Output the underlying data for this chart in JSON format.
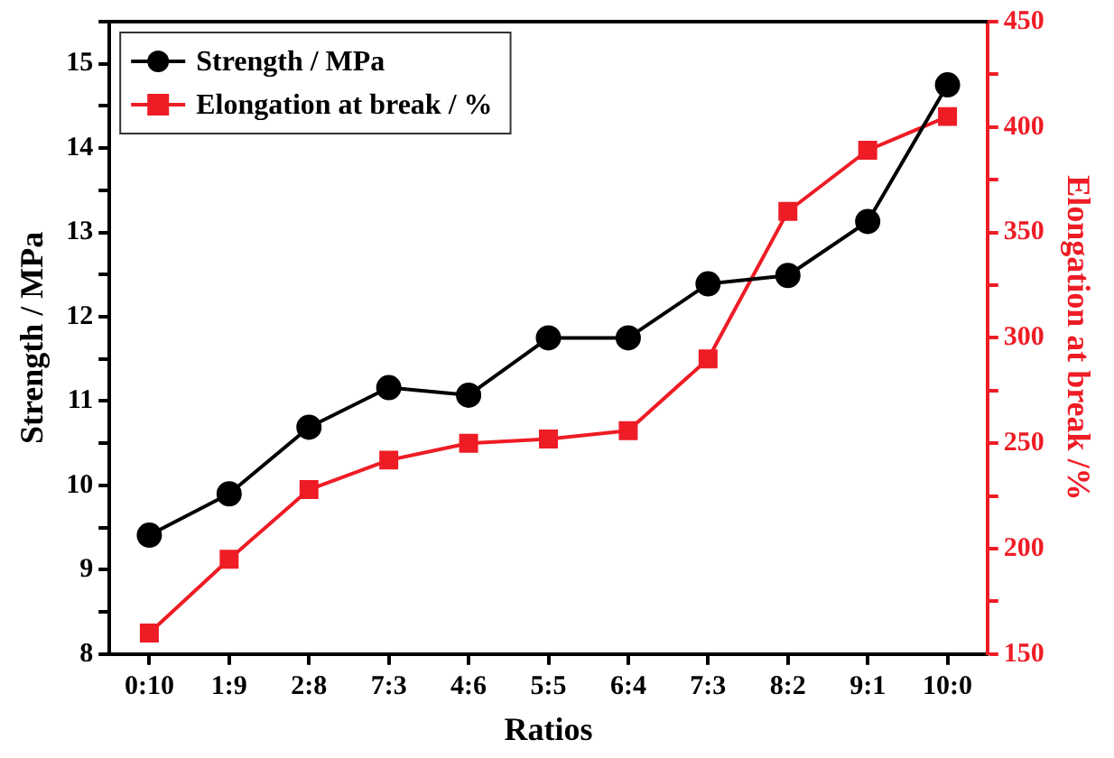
{
  "chart_data": {
    "type": "line",
    "xlabel": "Ratios",
    "ylabel": "Strength / MPa",
    "y2label": "Elongation at break /%",
    "categories": [
      "0:10",
      "1:9",
      "2:8",
      "7:3",
      "4:6",
      "5:5",
      "6:4",
      "7:3",
      "8:2",
      "9:1",
      "10:0"
    ],
    "series": [
      {
        "name": "Strength / MPa",
        "color": "#000000",
        "marker": "circle",
        "values": [
          9.41,
          9.9,
          10.69,
          11.16,
          11.07,
          11.75,
          11.75,
          12.39,
          12.49,
          13.13,
          14.75
        ]
      },
      {
        "name": "Elongation at break / %",
        "color": "#ee1c25",
        "marker": "square",
        "axis": "y2",
        "values": [
          160,
          195,
          228,
          242,
          250,
          252,
          256,
          290,
          360,
          389,
          405
        ]
      }
    ],
    "ylim": [
      8,
      15.5
    ],
    "yticks": [
      8,
      {
        "value": 8.5,
        "label": null
      },
      9,
      {
        "value": 9.5,
        "label": null
      },
      10,
      {
        "value": 10.5,
        "label": null
      },
      11,
      {
        "value": 11.5,
        "label": null
      },
      12,
      {
        "value": 12.5,
        "label": null
      },
      13,
      {
        "value": 13.5,
        "label": null
      },
      14,
      {
        "value": 14.5,
        "label": null
      },
      15,
      {
        "value": 15.5,
        "label": null
      }
    ],
    "y2lim": [
      150,
      450
    ],
    "y2ticks": [
      150,
      {
        "value": 175,
        "label": null
      },
      200,
      {
        "value": 225,
        "label": null
      },
      250,
      {
        "value": 275,
        "label": null
      },
      300,
      {
        "value": 325,
        "label": null
      },
      350,
      {
        "value": 375,
        "label": null
      },
      400,
      {
        "value": 425,
        "label": null
      },
      450
    ],
    "legend": "top left",
    "grid": false,
    "line_style": "solid"
  }
}
